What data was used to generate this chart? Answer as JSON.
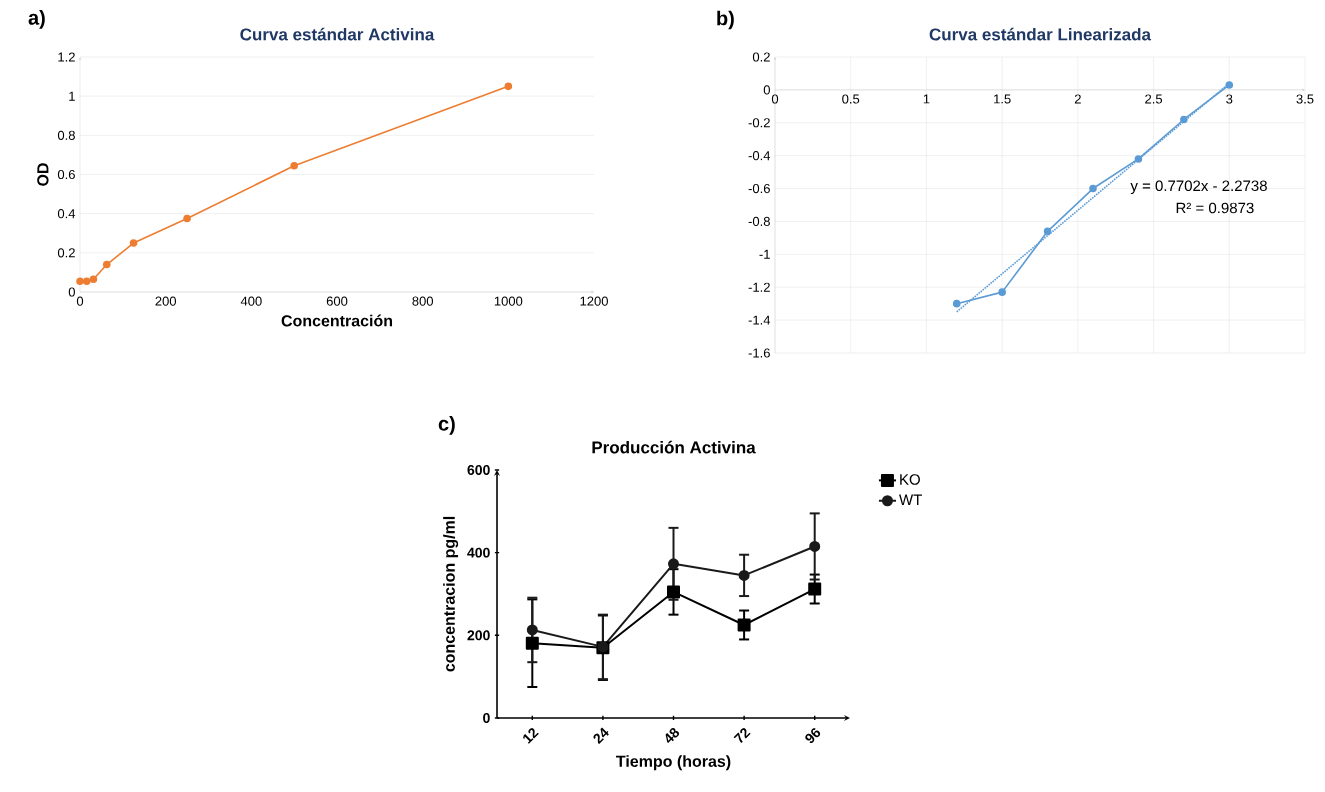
{
  "chart_data": [
    {
      "type": "line",
      "title": "Curva estándar Activina",
      "xlabel": "Concentración",
      "ylabel": "OD",
      "annotations": [
        "a)"
      ],
      "x": [
        0,
        15.6,
        31.25,
        62.5,
        125,
        250,
        500,
        1000
      ],
      "series": [
        {
          "color": "#ed7d31",
          "values": [
            0.055,
            0.055,
            0.065,
            0.14,
            0.25,
            0.375,
            0.645,
            1.05
          ]
        }
      ],
      "xlim": [
        0,
        1200
      ],
      "ylim": [
        0,
        1.2
      ],
      "xticks": [
        0,
        200,
        400,
        600,
        800,
        1000,
        1200
      ],
      "yticks": [
        0,
        0.2,
        0.4,
        0.6,
        0.8,
        1,
        1.2
      ],
      "grid": "y",
      "marker": "circle",
      "line_style": "solid"
    },
    {
      "type": "line",
      "title": "Curva estándar Linearizada",
      "annotations": [
        "b)",
        "y = 0.7702x - 2.2738",
        "R² = 0.9873"
      ],
      "series": [
        {
          "color": "#5b9bd5",
          "x": [
            1.2,
            1.5,
            1.8,
            2.1,
            2.4,
            2.7,
            3.0
          ],
          "values": [
            -1.3,
            -1.23,
            -0.86,
            -0.6,
            -0.42,
            -0.18,
            0.03
          ]
        },
        {
          "color": "#5b9bd5",
          "x": [
            1.2,
            3.0
          ],
          "values": [
            -1.35,
            0.04
          ],
          "marker": "none",
          "line_style": "dotted"
        }
      ],
      "xlim": [
        0,
        3.5
      ],
      "ylim": [
        -1.6,
        0.2
      ],
      "xticks": [
        0,
        0.5,
        1,
        1.5,
        2,
        2.5,
        3,
        3.5
      ],
      "yticks": [
        -1.6,
        -1.4,
        -1.2,
        -1,
        -0.8,
        -0.6,
        -0.4,
        -0.2,
        0,
        0.2
      ],
      "grid": true,
      "marker": "circle",
      "line_style": "solid"
    },
    {
      "type": "line",
      "title": "Producción Activina",
      "xlabel": "Tiempo (horas)",
      "ylabel": "concentracion pg/ml",
      "annotations": [
        "c)"
      ],
      "categories": [
        "12",
        "24",
        "48",
        "72",
        "96"
      ],
      "series": [
        {
          "name": "KO",
          "color": "#000000",
          "marker": "square",
          "values": [
            181,
            170,
            305,
            225,
            312
          ],
          "errors": [
            106,
            78,
            55,
            35,
            35
          ]
        },
        {
          "name": "WT",
          "color": "#1a1a1a",
          "marker": "circle",
          "values": [
            213,
            172,
            373,
            345,
            415
          ],
          "errors": [
            78,
            78,
            87,
            50,
            80
          ]
        }
      ],
      "ylim": [
        0,
        600
      ],
      "yticks": [
        0,
        200,
        400,
        600
      ],
      "grid": false,
      "legend": "top right",
      "line_style": "solid"
    }
  ]
}
